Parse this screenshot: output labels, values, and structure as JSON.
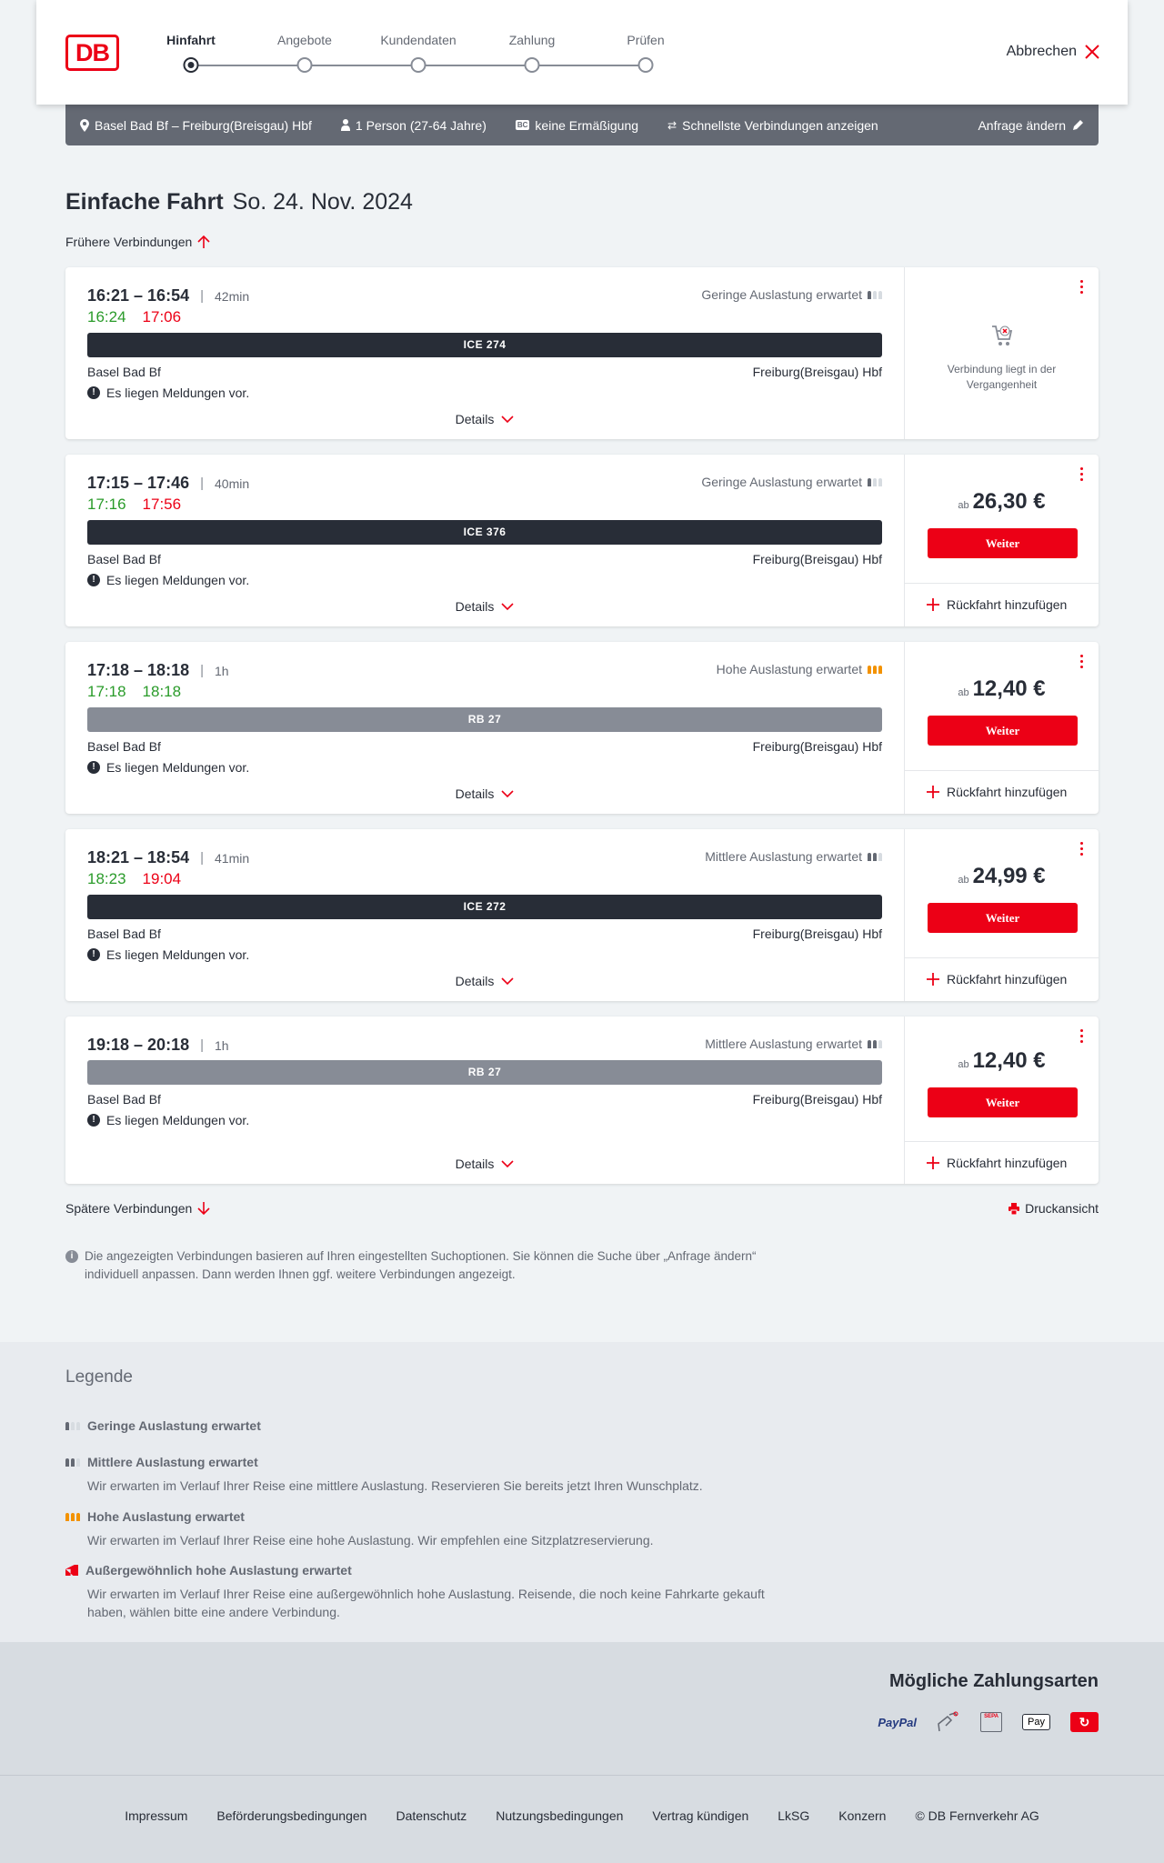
{
  "header": {
    "logo": "DB",
    "steps": [
      "Hinfahrt",
      "Angebote",
      "Kundendaten",
      "Zahlung",
      "Prüfen"
    ],
    "active_step": 0,
    "cancel_label": "Abbrechen"
  },
  "infobar": {
    "route": "Basel Bad Bf – Freiburg(Breisgau) Hbf",
    "travellers": "1 Person (27-64 Jahre)",
    "bahncard_badge": "BC",
    "discount": "keine Ermäßigung",
    "fastest": "Schnellste Verbindungen anzeigen",
    "edit_label": "Anfrage ändern"
  },
  "main": {
    "title": "Einfache Fahrt",
    "date": "So. 24. Nov. 2024",
    "earlier_label": "Frühere Verbindungen",
    "later_label": "Spätere Verbindungen",
    "print_label": "Druckansicht",
    "info_text": "Die angezeigten Verbindungen basieren auf Ihren eingestellten Suchoptionen. Sie können die Suche über „Anfrage ändern“ individuell anpassen. Dann werden Ihnen ggf. weitere Verbindungen angezeigt."
  },
  "common": {
    "from": "Basel Bad Bf",
    "to": "Freiburg(Breisgau) Hbf",
    "message": "Es liegen Meldungen vor.",
    "details": "Details",
    "price_prefix": "ab",
    "continue": "Weiter",
    "add_return": "Rückfahrt hinzufügen",
    "past_text": "Verbindung liegt in der Vergangenheit"
  },
  "connections": [
    {
      "times": "16:21 – 16:54",
      "duration": "42min",
      "rt_dep": "16:24",
      "rt_arr": "17:06",
      "rt_dep_color": "green",
      "occupancy": "Geringe Auslastung erwartet",
      "occ_level": 1,
      "train": "ICE 274",
      "train_color": "#282d37",
      "past": true,
      "price": null
    },
    {
      "times": "17:15 – 17:46",
      "duration": "40min",
      "rt_dep": "17:16",
      "rt_arr": "17:56",
      "rt_dep_color": "green",
      "occupancy": "Geringe Auslastung erwartet",
      "occ_level": 1,
      "train": "ICE 376",
      "train_color": "#282d37",
      "past": false,
      "price": "26,30 €"
    },
    {
      "times": "17:18 – 18:18",
      "duration": "1h",
      "rt_dep": "17:18",
      "rt_arr": "18:18",
      "rt_dep_color": "green",
      "rt_arr_color": "green",
      "occupancy": "Hohe Auslastung erwartet",
      "occ_level": 3,
      "train": "RB 27",
      "train_color": "#878c96",
      "past": false,
      "price": "12,40 €"
    },
    {
      "times": "18:21 – 18:54",
      "duration": "41min",
      "rt_dep": "18:23",
      "rt_arr": "19:04",
      "rt_dep_color": "green",
      "occupancy": "Mittlere Auslastung erwartet",
      "occ_level": 2,
      "train": "ICE 272",
      "train_color": "#282d37",
      "past": false,
      "price": "24,99 €"
    },
    {
      "times": "19:18 – 20:18",
      "duration": "1h",
      "rt_dep": null,
      "rt_arr": null,
      "occupancy": "Mittlere Auslastung erwartet",
      "occ_level": 2,
      "train": "RB 27",
      "train_color": "#878c96",
      "past": false,
      "price": "12,40 €"
    }
  ],
  "legend": {
    "title": "Legende",
    "items": [
      {
        "title": "Geringe Auslastung erwartet",
        "level": 1,
        "text": ""
      },
      {
        "title": "Mittlere Auslastung erwartet",
        "level": 2,
        "text": "Wir erwarten im Verlauf Ihrer Reise eine mittlere Auslastung. Reservieren Sie bereits jetzt Ihren Wunschplatz."
      },
      {
        "title": "Hohe Auslastung erwartet",
        "level": 3,
        "text": "Wir erwarten im Verlauf Ihrer Reise eine hohe Auslastung. Wir empfehlen eine Sitzplatzreservierung."
      },
      {
        "title": "Außergewöhnlich hohe Auslastung erwartet",
        "level": 4,
        "text": "Wir erwarten im Verlauf Ihrer Reise eine außergewöhnlich hohe Auslastung. Reisende, die noch keine Fahrkarte gekauft haben, wählen bitte eine andere Verbindung."
      }
    ]
  },
  "payment": {
    "title": "Mögliche Zahlungsarten",
    "methods": [
      "PayPal",
      "Kreditkarte",
      "SEPA",
      "Apple Pay",
      "DB Bonus"
    ]
  },
  "footer": {
    "links": [
      "Impressum",
      "Beförderungsbedingungen",
      "Datenschutz",
      "Nutzungsbedingungen",
      "Vertrag kündigen",
      "LkSG",
      "Konzern",
      "© DB Fernverkehr AG"
    ]
  },
  "colors": {
    "accent": "#ec0016",
    "green": "#2a9b2a",
    "infobar": "#646973",
    "high_occupancy": "#f39200"
  }
}
